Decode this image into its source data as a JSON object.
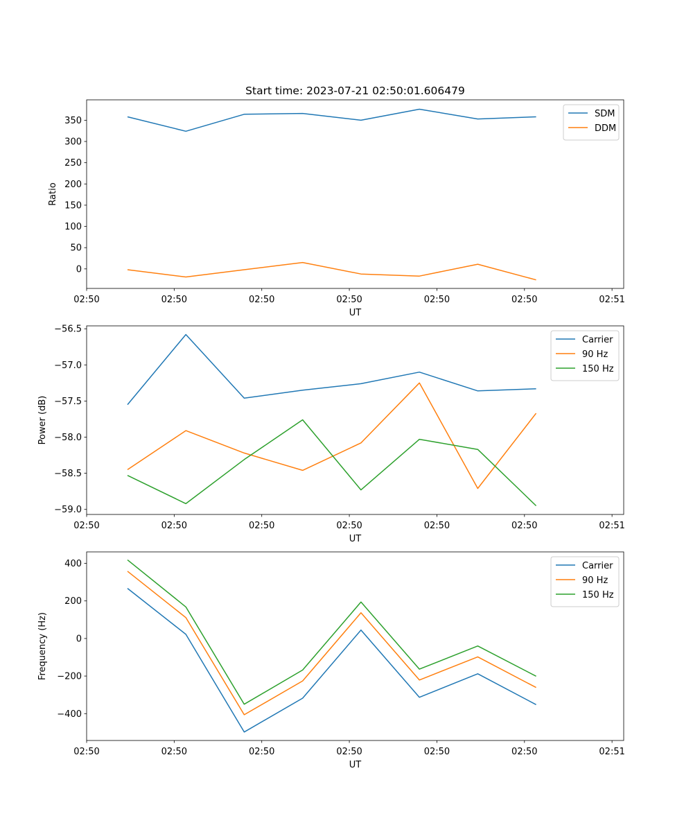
{
  "chart_data": [
    {
      "type": "line",
      "title": "Start time: 2023-07-21 02:50:01.606479",
      "xlabel": "UT",
      "ylabel": "Ratio",
      "xlim": [
        0,
        9.2
      ],
      "ylim": [
        -46,
        398
      ],
      "x": [
        0.7,
        1.7,
        2.7,
        3.7,
        4.7,
        5.7,
        6.7,
        7.7
      ],
      "xticks": [
        0.0,
        1.5,
        3.0,
        4.5,
        6.0,
        7.5,
        9.0
      ],
      "xtick_labels": [
        "02:50",
        "02:50",
        "02:50",
        "02:50",
        "02:50",
        "02:50",
        "02:51"
      ],
      "yticks": [
        0,
        50,
        100,
        150,
        200,
        250,
        300,
        350
      ],
      "ytick_labels": [
        "0",
        "50",
        "100",
        "150",
        "200",
        "250",
        "300",
        "350"
      ],
      "legend": "top-right",
      "series": [
        {
          "name": "SDM",
          "color": "#1f77b4",
          "values": [
            358,
            324,
            364,
            366,
            350,
            376,
            353,
            358
          ]
        },
        {
          "name": "DDM",
          "color": "#ff7f0e",
          "values": [
            -2,
            -19,
            -2,
            15,
            -12,
            -17,
            11,
            -26
          ]
        }
      ]
    },
    {
      "type": "line",
      "title": "",
      "xlabel": "UT",
      "ylabel": "Power (dB)",
      "xlim": [
        0,
        9.2
      ],
      "ylim": [
        -59.07,
        -56.46
      ],
      "x": [
        0.7,
        1.7,
        2.7,
        3.7,
        4.7,
        5.7,
        6.7,
        7.7
      ],
      "xticks": [
        0.0,
        1.5,
        3.0,
        4.5,
        6.0,
        7.5,
        9.0
      ],
      "xtick_labels": [
        "02:50",
        "02:50",
        "02:50",
        "02:50",
        "02:50",
        "02:50",
        "02:51"
      ],
      "yticks": [
        -59.0,
        -58.5,
        -58.0,
        -57.5,
        -57.0,
        -56.5
      ],
      "ytick_labels": [
        "−59.0",
        "−58.5",
        "−58.0",
        "−57.5",
        "−57.0",
        "−56.5"
      ],
      "legend": "top-right",
      "series": [
        {
          "name": "Carrier",
          "color": "#1f77b4",
          "values": [
            -57.55,
            -56.58,
            -57.46,
            -57.35,
            -57.26,
            -57.1,
            -57.36,
            -57.33
          ]
        },
        {
          "name": "90 Hz",
          "color": "#ff7f0e",
          "values": [
            -58.45,
            -57.91,
            -58.22,
            -58.46,
            -58.08,
            -57.25,
            -58.71,
            -57.67
          ]
        },
        {
          "name": "150 Hz",
          "color": "#2ca02c",
          "values": [
            -58.53,
            -58.92,
            -58.31,
            -57.76,
            -58.73,
            -58.03,
            -58.17,
            -58.95
          ]
        }
      ]
    },
    {
      "type": "line",
      "title": "",
      "xlabel": "UT",
      "ylabel": "Frequency (Hz)",
      "xlim": [
        0,
        9.2
      ],
      "ylim": [
        -543,
        461
      ],
      "x": [
        0.7,
        1.7,
        2.7,
        3.7,
        4.7,
        5.7,
        6.7,
        7.7
      ],
      "xticks": [
        0.0,
        1.5,
        3.0,
        4.5,
        6.0,
        7.5,
        9.0
      ],
      "xtick_labels": [
        "02:50",
        "02:50",
        "02:50",
        "02:50",
        "02:50",
        "02:50",
        "02:51"
      ],
      "yticks": [
        -400,
        -200,
        0,
        200,
        400
      ],
      "ytick_labels": [
        "−400",
        "−200",
        "0",
        "200",
        "400"
      ],
      "legend": "top-right",
      "series": [
        {
          "name": "Carrier",
          "color": "#1f77b4",
          "values": [
            267,
            22,
            -498,
            -318,
            45,
            -313,
            -188,
            -352
          ]
        },
        {
          "name": "90 Hz",
          "color": "#ff7f0e",
          "values": [
            358,
            111,
            -406,
            -226,
            137,
            -221,
            -98,
            -261
          ]
        },
        {
          "name": "150 Hz",
          "color": "#2ca02c",
          "values": [
            418,
            168,
            -350,
            -168,
            194,
            -163,
            -40,
            -201
          ]
        }
      ]
    }
  ]
}
